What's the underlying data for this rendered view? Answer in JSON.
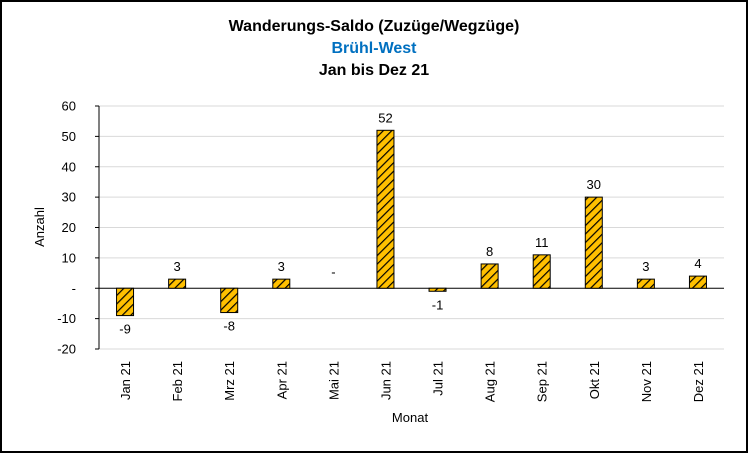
{
  "colors": {
    "bar_fill": "#FFC000",
    "bar_hatch": "#000000",
    "grid": "#D9D9D9",
    "subtitle": "#0070C0"
  },
  "chart_data": {
    "type": "bar",
    "title": "Wanderungs-Saldo (Zuzüge/Wegzüge)",
    "subtitle": "Brühl-West",
    "period": "Jan bis Dez 21",
    "xlabel": "Monat",
    "ylabel": "Anzahl",
    "ylim": [
      -20,
      60
    ],
    "yticks": [
      60,
      50,
      40,
      30,
      20,
      10,
      0,
      -10,
      -20
    ],
    "ytick_labels": [
      "60",
      "50",
      "40",
      "30",
      "20",
      "10",
      "-",
      "-10",
      "-20"
    ],
    "grid": true,
    "legend": "none",
    "categories": [
      "Jan 21",
      "Feb 21",
      "Mrz 21",
      "Apr 21",
      "Mai 21",
      "Jun 21",
      "Jul 21",
      "Aug 21",
      "Sep 21",
      "Okt 21",
      "Nov 21",
      "Dez 21"
    ],
    "values": [
      -9,
      3,
      -8,
      3,
      0,
      52,
      -1,
      8,
      11,
      30,
      3,
      4
    ],
    "data_labels": [
      "-9",
      "3",
      "-8",
      "3",
      "-",
      "52",
      "-1",
      "8",
      "11",
      "30",
      "3",
      "4"
    ]
  }
}
